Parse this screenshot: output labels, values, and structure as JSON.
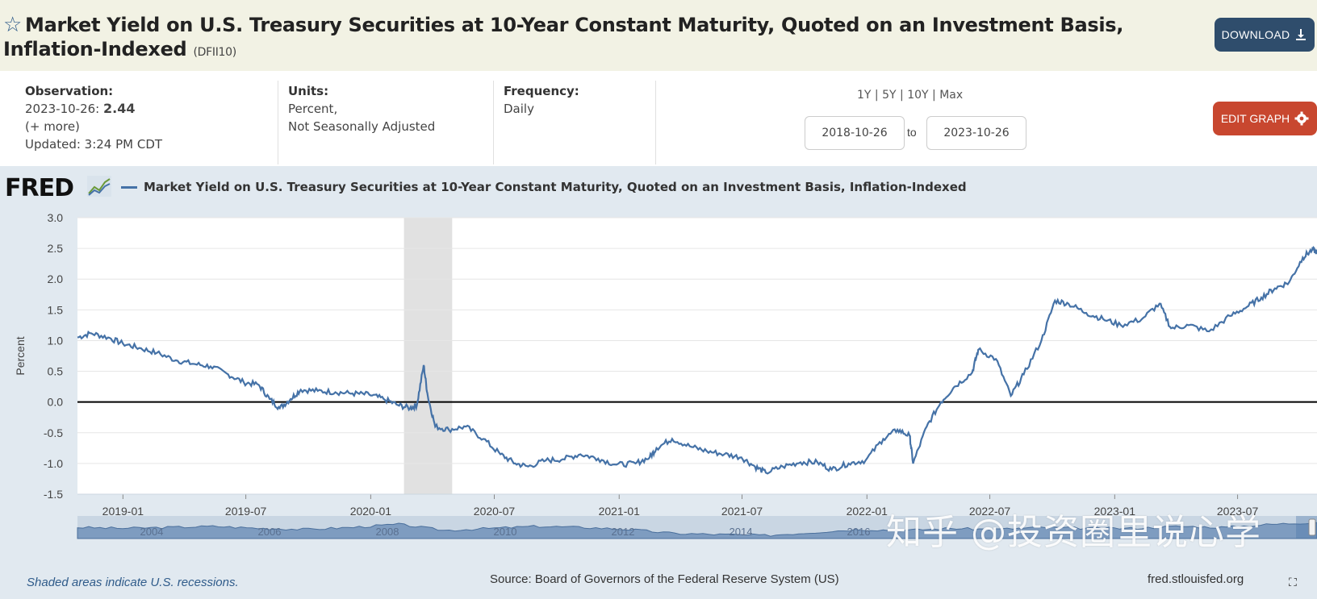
{
  "header": {
    "title": "Market Yield on U.S. Treasury Securities at 10-Year Constant Maturity, Quoted on an Investment Basis, Inflation-Indexed",
    "series_id": "(DFII10)",
    "download_label": "DOWNLOAD"
  },
  "info": {
    "observation_label": "Observation:",
    "observation_date": "2023-10-26:",
    "observation_value": "2.44",
    "more": "(+ more)",
    "updated": "Updated: 3:24 PM CDT",
    "units_label": "Units:",
    "units_line1": "Percent,",
    "units_line2": "Not Seasonally Adjusted",
    "frequency_label": "Frequency:",
    "frequency_value": "Daily",
    "range_1y": "1Y",
    "range_5y": "5Y",
    "range_10y": "10Y",
    "range_max": "Max",
    "range_sep": "|",
    "start_date": "2018-10-26",
    "to": "to",
    "end_date": "2023-10-26",
    "edit_label": "EDIT GRAPH"
  },
  "chart_panel": {
    "logo": "FRED",
    "legend": "Market Yield on U.S. Treasury Securities at 10-Year Constant Maturity, Quoted on an Investment Basis, Inflation-Indexed",
    "recession_note": "Shaded areas indicate U.S. recessions.",
    "source": "Source: Board of Governors of the Federal Reserve System (US)",
    "site": "fred.stlouisfed.org",
    "watermark": "知乎 @投资圈里说心学"
  },
  "colors": {
    "line": "#4572a7",
    "header_bg": "#f2f2e4",
    "download": "#2f4d6c",
    "edit": "#c8472f",
    "panel_bg": "#e1e9f0",
    "recession": "#e1e1e1"
  },
  "chart_data": {
    "type": "line",
    "title": "Market Yield on U.S. Treasury Securities at 10-Year Constant Maturity, Quoted on an Investment Basis, Inflation-Indexed",
    "xlabel": "",
    "ylabel": "Percent",
    "ylim": [
      -1.5,
      3.0
    ],
    "xlim": [
      "2018-10-26",
      "2023-10-26"
    ],
    "yticks": [
      "3.0",
      "2.5",
      "2.0",
      "1.5",
      "1.0",
      "0.5",
      "0.0",
      "-0.5",
      "-1.0",
      "-1.5"
    ],
    "xticks": [
      "2019-01",
      "2019-07",
      "2020-01",
      "2020-07",
      "2021-01",
      "2021-07",
      "2022-01",
      "2022-07",
      "2023-01",
      "2023-07"
    ],
    "recession": [
      "2020-02",
      "2020-04"
    ],
    "navigator_labels": [
      "2004",
      "2006",
      "2008",
      "2010",
      "2012",
      "2014",
      "2016"
    ],
    "series": [
      {
        "name": "DFII10",
        "x": [
          "2018-10-26",
          "2018-11-15",
          "2018-12-10",
          "2019-01-01",
          "2019-01-25",
          "2019-02-20",
          "2019-03-20",
          "2019-04-15",
          "2019-05-10",
          "2019-06-05",
          "2019-06-28",
          "2019-07-20",
          "2019-08-05",
          "2019-08-20",
          "2019-09-05",
          "2019-09-20",
          "2019-10-15",
          "2019-11-10",
          "2019-12-05",
          "2019-12-30",
          "2020-01-20",
          "2020-02-10",
          "2020-02-28",
          "2020-03-09",
          "2020-03-19",
          "2020-03-25",
          "2020-04-05",
          "2020-04-25",
          "2020-05-20",
          "2020-06-15",
          "2020-07-10",
          "2020-08-01",
          "2020-08-20",
          "2020-09-15",
          "2020-10-10",
          "2020-11-05",
          "2020-12-01",
          "2020-12-28",
          "2021-01-25",
          "2021-02-15",
          "2021-02-25",
          "2021-03-20",
          "2021-04-15",
          "2021-05-10",
          "2021-06-05",
          "2021-06-30",
          "2021-07-20",
          "2021-08-05",
          "2021-08-30",
          "2021-09-25",
          "2021-10-20",
          "2021-11-10",
          "2021-12-05",
          "2021-12-30",
          "2022-01-25",
          "2022-02-15",
          "2022-03-05",
          "2022-03-10",
          "2022-03-30",
          "2022-04-20",
          "2022-05-10",
          "2022-06-05",
          "2022-06-14",
          "2022-07-10",
          "2022-08-01",
          "2022-08-20",
          "2022-09-15",
          "2022-10-05",
          "2022-10-25",
          "2022-11-20",
          "2022-12-15",
          "2023-01-10",
          "2023-02-10",
          "2023-03-08",
          "2023-03-25",
          "2023-04-20",
          "2023-05-20",
          "2023-06-20",
          "2023-07-15",
          "2023-08-05",
          "2023-08-25",
          "2023-09-15",
          "2023-10-05",
          "2023-10-19",
          "2023-10-26"
        ],
        "values": [
          1.05,
          1.12,
          1.05,
          0.95,
          0.88,
          0.8,
          0.68,
          0.62,
          0.58,
          0.45,
          0.32,
          0.28,
          0.05,
          -0.1,
          0.05,
          0.2,
          0.18,
          0.16,
          0.14,
          0.12,
          0.05,
          -0.05,
          -0.1,
          -0.05,
          0.6,
          0.1,
          -0.4,
          -0.45,
          -0.4,
          -0.6,
          -0.85,
          -1.0,
          -1.05,
          -0.95,
          -0.93,
          -0.85,
          -0.92,
          -1.02,
          -1.0,
          -0.9,
          -0.75,
          -0.6,
          -0.72,
          -0.8,
          -0.85,
          -0.9,
          -1.05,
          -1.15,
          -1.05,
          -0.98,
          -0.98,
          -1.1,
          -1.0,
          -0.95,
          -0.6,
          -0.45,
          -0.55,
          -1.0,
          -0.4,
          0.0,
          0.25,
          0.48,
          0.85,
          0.7,
          0.1,
          0.45,
          1.0,
          1.65,
          1.6,
          1.45,
          1.35,
          1.25,
          1.35,
          1.6,
          1.2,
          1.25,
          1.15,
          1.4,
          1.55,
          1.7,
          1.85,
          1.95,
          2.35,
          2.48,
          2.44
        ]
      }
    ]
  }
}
